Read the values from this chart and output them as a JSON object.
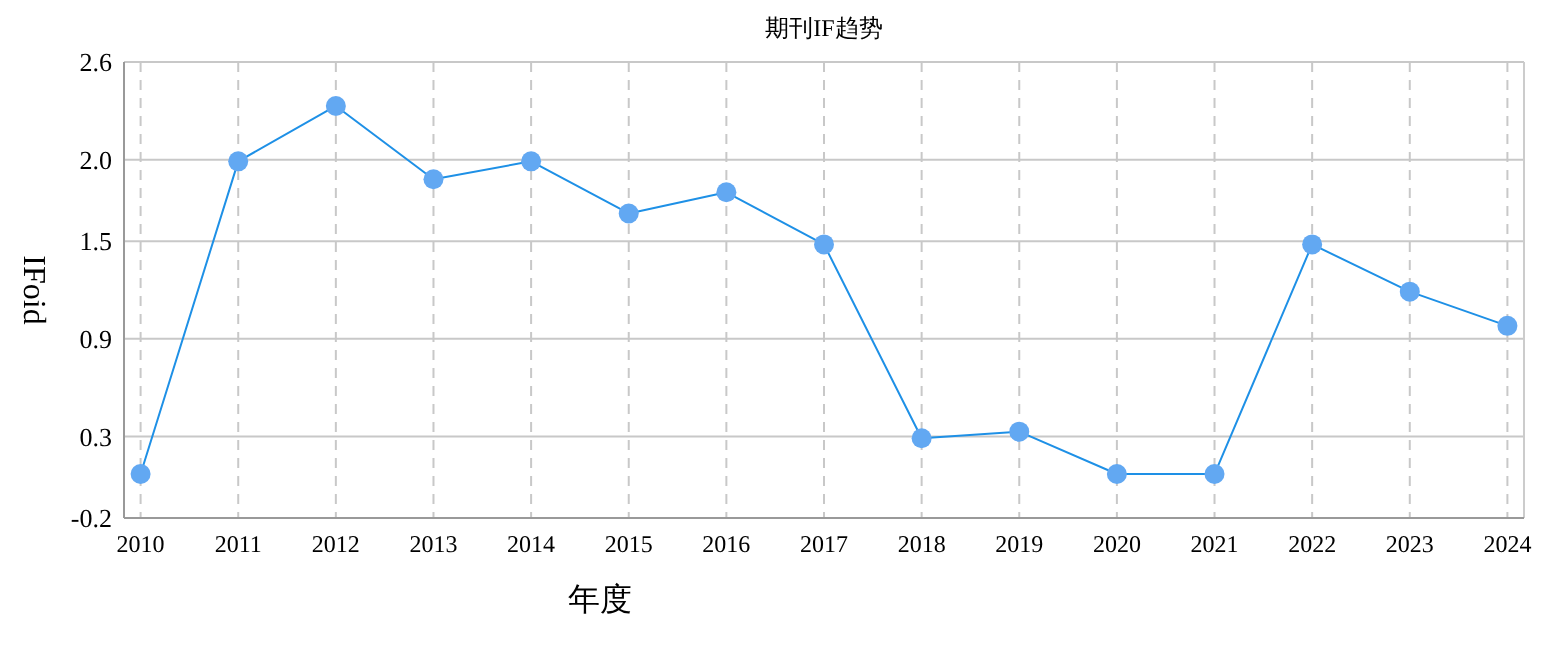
{
  "chart_data": {
    "type": "line",
    "title": "期刊IF趋势",
    "xlabel": "年度",
    "ylabel": "IFoid",
    "categories": [
      "2010",
      "2011",
      "2012",
      "2013",
      "2014",
      "2015",
      "2016",
      "2017",
      "2018",
      "2019",
      "2020",
      "2021",
      "2022",
      "2023",
      "2024"
    ],
    "series": [
      {
        "color": "#1e90e6",
        "values": [
          0.07,
          1.99,
          2.33,
          1.88,
          1.99,
          1.67,
          1.8,
          1.48,
          0.29,
          0.33,
          0.07,
          0.07,
          1.48,
          1.19,
          0.98
        ]
      }
    ],
    "ylim": [
      -0.2,
      2.6
    ],
    "yticks": [
      -0.2,
      0.3,
      0.9,
      1.5,
      {
        "value": 2.0,
        "label": "2.0"
      },
      2.6
    ],
    "grid": true,
    "marker": "circle",
    "line_style": "solid"
  }
}
